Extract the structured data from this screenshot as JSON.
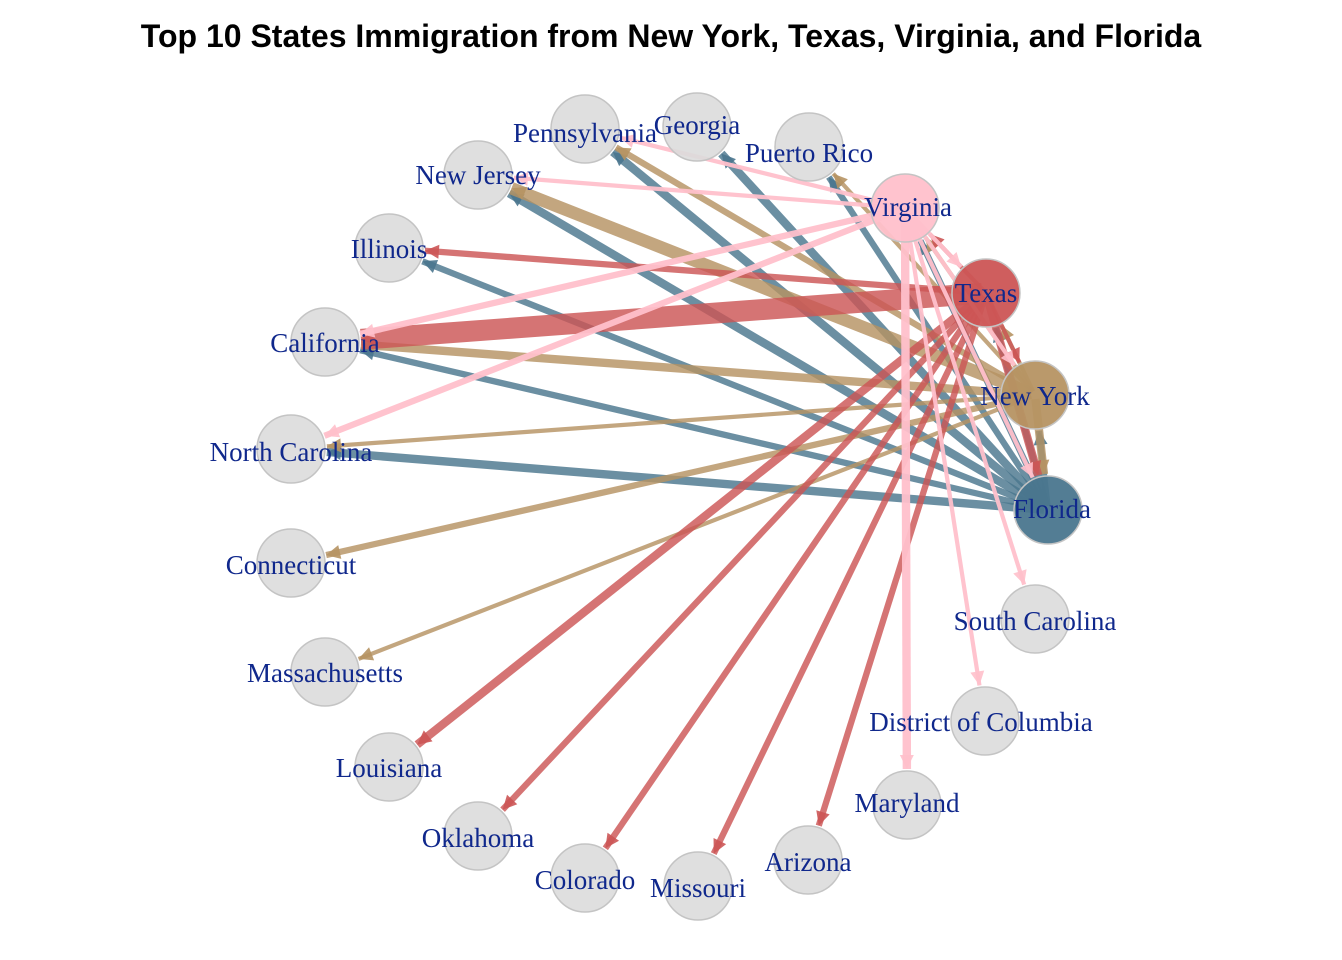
{
  "title": "Top 10 States Immigration from New York, Texas, Virginia, and Florida",
  "colors": {
    "background": "#ffffff",
    "node_default": "#dcdcdc",
    "node_stroke": "#c4c4c4",
    "label": "#10288c",
    "Florida": "#4a768e",
    "Texas": "#cc5555",
    "New York": "#b69363",
    "Virginia": "#ffc0cb"
  },
  "nodes": [
    {
      "id": "Georgia",
      "label": "Georgia"
    },
    {
      "id": "Puerto Rico",
      "label": "Puerto Rico"
    },
    {
      "id": "Virginia",
      "label": "Virginia",
      "source": true
    },
    {
      "id": "Texas",
      "label": "Texas",
      "source": true
    },
    {
      "id": "New York",
      "label": "New York",
      "source": true
    },
    {
      "id": "Florida",
      "label": "Florida",
      "source": true
    },
    {
      "id": "South Carolina",
      "label": "South Carolina"
    },
    {
      "id": "District of Columbia",
      "label": "District of Columbia"
    },
    {
      "id": "Maryland",
      "label": "Maryland"
    },
    {
      "id": "Arizona",
      "label": "Arizona"
    },
    {
      "id": "Missouri",
      "label": "Missouri"
    },
    {
      "id": "Colorado",
      "label": "Colorado"
    },
    {
      "id": "Oklahoma",
      "label": "Oklahoma"
    },
    {
      "id": "Louisiana",
      "label": "Louisiana"
    },
    {
      "id": "Massachusetts",
      "label": "Massachusetts"
    },
    {
      "id": "Connecticut",
      "label": "Connecticut"
    },
    {
      "id": "North Carolina",
      "label": "North Carolina"
    },
    {
      "id": "California",
      "label": "California"
    },
    {
      "id": "Illinois",
      "label": "Illinois"
    },
    {
      "id": "New Jersey",
      "label": "New Jersey"
    },
    {
      "id": "Pennsylvania",
      "label": "Pennsylvania"
    }
  ],
  "edges": [
    {
      "from": "Texas",
      "to": "California",
      "weight": 10
    },
    {
      "from": "Texas",
      "to": "Florida",
      "weight": 4
    },
    {
      "from": "Texas",
      "to": "Illinois",
      "weight": 3
    },
    {
      "from": "Texas",
      "to": "Louisiana",
      "weight": 4
    },
    {
      "from": "Texas",
      "to": "Oklahoma",
      "weight": 3
    },
    {
      "from": "Texas",
      "to": "Colorado",
      "weight": 3
    },
    {
      "from": "Texas",
      "to": "Missouri",
      "weight": 3
    },
    {
      "from": "Texas",
      "to": "Arizona",
      "weight": 3
    },
    {
      "from": "Texas",
      "to": "New York",
      "weight": 2
    },
    {
      "from": "Texas",
      "to": "Virginia",
      "weight": 2
    },
    {
      "from": "Florida",
      "to": "Georgia",
      "weight": 4
    },
    {
      "from": "Florida",
      "to": "Puerto Rico",
      "weight": 3
    },
    {
      "from": "Florida",
      "to": "Pennsylvania",
      "weight": 4
    },
    {
      "from": "Florida",
      "to": "New Jersey",
      "weight": 4
    },
    {
      "from": "Florida",
      "to": "Illinois",
      "weight": 3
    },
    {
      "from": "Florida",
      "to": "California",
      "weight": 3
    },
    {
      "from": "Florida",
      "to": "North Carolina",
      "weight": 4
    },
    {
      "from": "Florida",
      "to": "Virginia",
      "weight": 3
    },
    {
      "from": "Florida",
      "to": "New York",
      "weight": 3
    },
    {
      "from": "Florida",
      "to": "Texas",
      "weight": 3
    },
    {
      "from": "New York",
      "to": "New Jersey",
      "weight": 6
    },
    {
      "from": "New York",
      "to": "Pennsylvania",
      "weight": 3
    },
    {
      "from": "New York",
      "to": "Puerto Rico",
      "weight": 2
    },
    {
      "from": "New York",
      "to": "California",
      "weight": 4
    },
    {
      "from": "New York",
      "to": "North Carolina",
      "weight": 2
    },
    {
      "from": "New York",
      "to": "Connecticut",
      "weight": 3
    },
    {
      "from": "New York",
      "to": "Massachusetts",
      "weight": 2
    },
    {
      "from": "New York",
      "to": "Florida",
      "weight": 4
    },
    {
      "from": "New York",
      "to": "Texas",
      "weight": 2
    },
    {
      "from": "New York",
      "to": "Virginia",
      "weight": 2
    },
    {
      "from": "Virginia",
      "to": "California",
      "weight": 3
    },
    {
      "from": "Virginia",
      "to": "North Carolina",
      "weight": 3
    },
    {
      "from": "Virginia",
      "to": "Pennsylvania",
      "weight": 2
    },
    {
      "from": "Virginia",
      "to": "New Jersey",
      "weight": 2
    },
    {
      "from": "Virginia",
      "to": "Maryland",
      "weight": 4
    },
    {
      "from": "Virginia",
      "to": "District of Columbia",
      "weight": 2
    },
    {
      "from": "Virginia",
      "to": "South Carolina",
      "weight": 2
    },
    {
      "from": "Virginia",
      "to": "Texas",
      "weight": 2
    },
    {
      "from": "Virginia",
      "to": "Florida",
      "weight": 2
    },
    {
      "from": "Virginia",
      "to": "New York",
      "weight": 2
    }
  ]
}
